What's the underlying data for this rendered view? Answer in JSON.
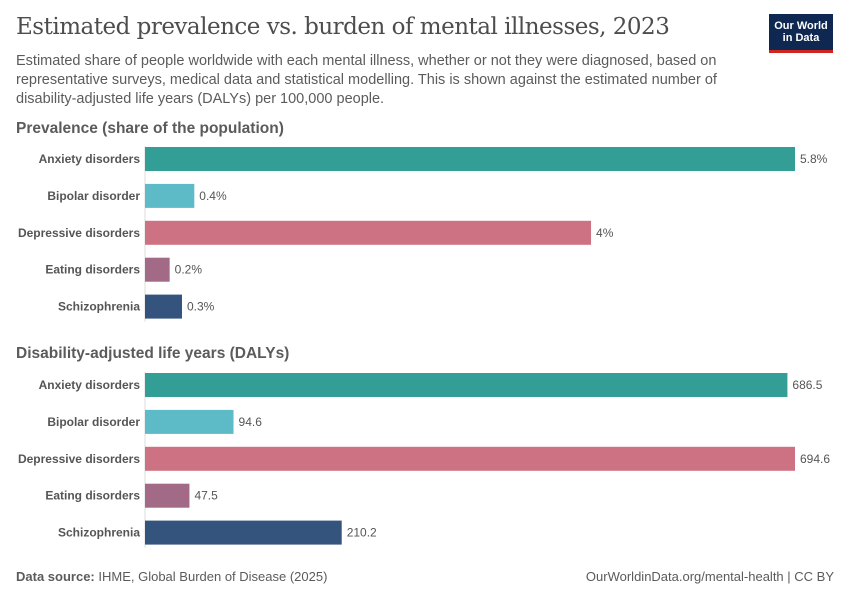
{
  "header": {
    "title": "Estimated prevalence vs. burden of mental illnesses, 2023",
    "subtitle": "Estimated share of people worldwide with each mental illness, whether or not they were diagnosed, based on representative surveys, medical data and statistical modelling. This is shown against the estimated number of disability-adjusted life years (DALYs) per 100,000 people.",
    "logo": "Our World in Data"
  },
  "chart_data": [
    {
      "type": "bar",
      "orientation": "horizontal",
      "title": "Prevalence (share of the population)",
      "categories": [
        "Anxiety disorders",
        "Bipolar disorder",
        "Depressive disorders",
        "Eating disorders",
        "Schizophrenia"
      ],
      "values": [
        5.8,
        0.44,
        3.98,
        0.22,
        0.33
      ],
      "labels": [
        "5.8%",
        "0.4%",
        "4%",
        "0.2%",
        "0.3%"
      ],
      "colors": [
        "#329e96",
        "#5dbbc8",
        "#cc7282",
        "#a26a87",
        "#34547d"
      ]
    },
    {
      "type": "bar",
      "orientation": "horizontal",
      "title": "Disability-adjusted life years (DALYs)",
      "categories": [
        "Anxiety disorders",
        "Bipolar disorder",
        "Depressive disorders",
        "Eating disorders",
        "Schizophrenia"
      ],
      "values": [
        686.5,
        94.6,
        694.6,
        47.5,
        210.2
      ],
      "labels": [
        "686.5",
        "94.6",
        "694.6",
        "47.5",
        "210.2"
      ],
      "colors": [
        "#329e96",
        "#5dbbc8",
        "#cc7282",
        "#a26a87",
        "#34547d"
      ]
    }
  ],
  "footer": {
    "source_label": "Data source:",
    "source": "IHME, Global Burden of Disease (2025)",
    "url": "OurWorldinData.org/mental-health | CC BY"
  }
}
